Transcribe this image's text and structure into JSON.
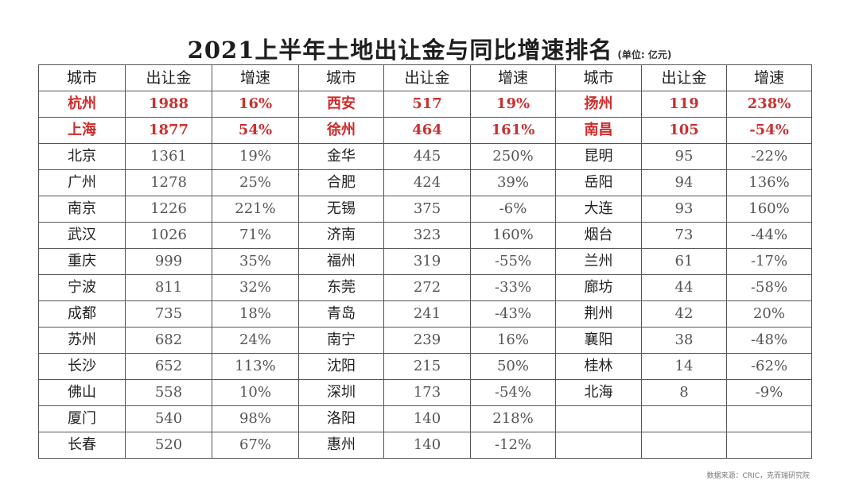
{
  "title": "2021上半年土地出让金与同比增速排名",
  "unit_note": "(单位: 亿元)",
  "headers": [
    "城市",
    "出让金",
    "增速",
    "城市",
    "出让金",
    "增速",
    "城市",
    "出让金",
    "增速"
  ],
  "groups": [
    [
      {
        "city": "杭州",
        "amount": "1988",
        "growth": "16%"
      },
      {
        "city": "上海",
        "amount": "1877",
        "growth": "54%"
      },
      {
        "city": "北京",
        "amount": "1361",
        "growth": "19%"
      },
      {
        "city": "广州",
        "amount": "1278",
        "growth": "25%"
      },
      {
        "city": "南京",
        "amount": "1226",
        "growth": "221%"
      },
      {
        "city": "武汉",
        "amount": "1026",
        "growth": "71%"
      },
      {
        "city": "重庆",
        "amount": "999",
        "growth": "35%"
      },
      {
        "city": "宁波",
        "amount": "811",
        "growth": "32%"
      },
      {
        "city": "成都",
        "amount": "735",
        "growth": "18%"
      },
      {
        "city": "苏州",
        "amount": "682",
        "growth": "24%"
      },
      {
        "city": "长沙",
        "amount": "652",
        "growth": "113%"
      },
      {
        "city": "佛山",
        "amount": "558",
        "growth": "10%"
      },
      {
        "city": "厦门",
        "amount": "540",
        "growth": "98%"
      },
      {
        "city": "长春",
        "amount": "520",
        "growth": "67%"
      }
    ],
    [
      {
        "city": "西安",
        "amount": "517",
        "growth": "19%"
      },
      {
        "city": "徐州",
        "amount": "464",
        "growth": "161%"
      },
      {
        "city": "金华",
        "amount": "445",
        "growth": "250%"
      },
      {
        "city": "合肥",
        "amount": "424",
        "growth": "39%"
      },
      {
        "city": "无锡",
        "amount": "375",
        "growth": "-6%"
      },
      {
        "city": "济南",
        "amount": "323",
        "growth": "160%"
      },
      {
        "city": "福州",
        "amount": "319",
        "growth": "-55%"
      },
      {
        "city": "东莞",
        "amount": "272",
        "growth": "-33%"
      },
      {
        "city": "青岛",
        "amount": "241",
        "growth": "-43%"
      },
      {
        "city": "南宁",
        "amount": "239",
        "growth": "16%"
      },
      {
        "city": "沈阳",
        "amount": "215",
        "growth": "50%"
      },
      {
        "city": "深圳",
        "amount": "173",
        "growth": "-54%"
      },
      {
        "city": "洛阳",
        "amount": "140",
        "growth": "218%"
      },
      {
        "city": "惠州",
        "amount": "140",
        "growth": "-12%"
      }
    ],
    [
      {
        "city": "扬州",
        "amount": "119",
        "growth": "238%"
      },
      {
        "city": "南昌",
        "amount": "105",
        "growth": "-54%"
      },
      {
        "city": "昆明",
        "amount": "95",
        "growth": "-22%"
      },
      {
        "city": "岳阳",
        "amount": "94",
        "growth": "136%"
      },
      {
        "city": "大连",
        "amount": "93",
        "growth": "160%"
      },
      {
        "city": "烟台",
        "amount": "73",
        "growth": "-44%"
      },
      {
        "city": "兰州",
        "amount": "61",
        "growth": "-17%"
      },
      {
        "city": "廊坊",
        "amount": "44",
        "growth": "-58%"
      },
      {
        "city": "荆州",
        "amount": "42",
        "growth": "20%"
      },
      {
        "city": "襄阳",
        "amount": "38",
        "growth": "-48%"
      },
      {
        "city": "桂林",
        "amount": "14",
        "growth": "-62%"
      },
      {
        "city": "北海",
        "amount": "8",
        "growth": "-9%"
      }
    ]
  ],
  "source": "数据来源：CRIC，克而瑞研究院",
  "colors": {
    "highlight": "#d02a2a",
    "border": "#555555"
  }
}
